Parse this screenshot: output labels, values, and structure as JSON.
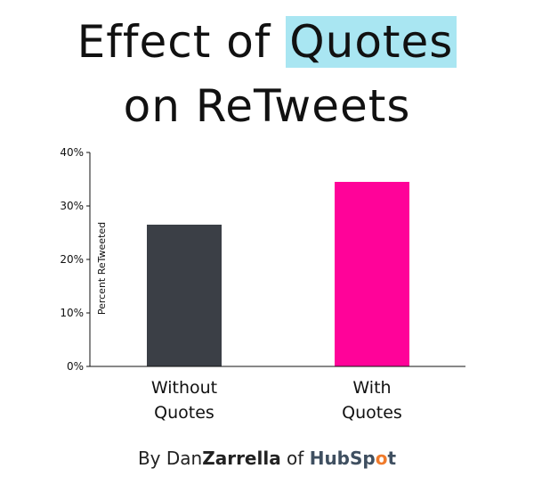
{
  "title": {
    "part1": "Effect of ",
    "highlight": "Quotes",
    "line2": "on ReTweets",
    "highlight_color": "#a9e6f2"
  },
  "credit": {
    "by": "By Dan",
    "name_bold": "Zarrella",
    "of": " of ",
    "logo_a": "HubSp",
    "logo_o": "o",
    "logo_b": "t"
  },
  "chart_data": {
    "type": "bar",
    "categories": [
      "Without Quotes",
      "With Quotes"
    ],
    "category_lines": [
      [
        "Without",
        "Quotes"
      ],
      [
        "With",
        "Quotes"
      ]
    ],
    "values": [
      26.5,
      34.5
    ],
    "colors": [
      "#3b3f46",
      "#ff0399"
    ],
    "ylabel": "Percent ReTweeted",
    "ylim": [
      0,
      40
    ],
    "yticks": [
      0,
      10,
      20,
      30,
      40
    ],
    "ytick_labels": [
      "0%",
      "10%",
      "20%",
      "30%",
      "40%"
    ],
    "grid": false
  }
}
